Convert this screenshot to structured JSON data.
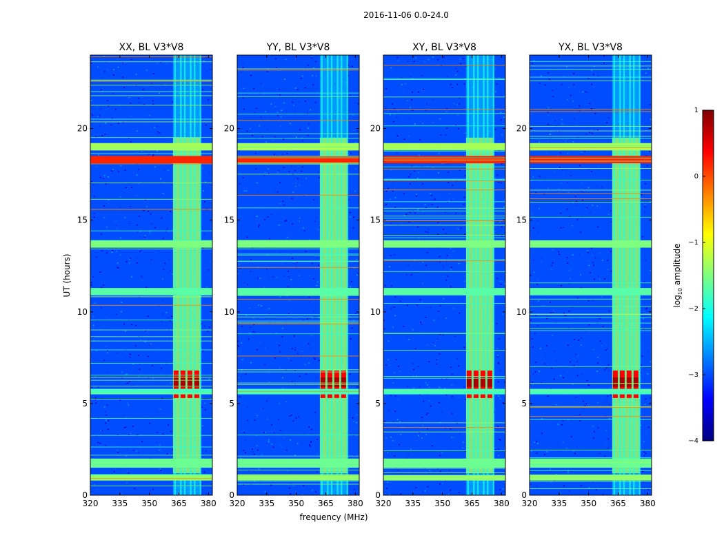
{
  "figure": {
    "title": "2016-11-06 0.0-24.0"
  },
  "chart_data": {
    "type": "heatmap",
    "xlabel": "frequency (MHz)",
    "ylabel": "UT (hours)",
    "xlim": [
      320,
      382
    ],
    "ylim": [
      0,
      24
    ],
    "xticks": [
      "320",
      "335",
      "350",
      "365",
      "380"
    ],
    "xtick_values": [
      320,
      335,
      350,
      365,
      380
    ],
    "yticks": [
      "0",
      "5",
      "10",
      "15",
      "20"
    ],
    "ytick_values": [
      0,
      5,
      10,
      15,
      20
    ],
    "panels": [
      {
        "title": "XX, BL V3*V8"
      },
      {
        "title": "YY, BL V3*V8"
      },
      {
        "title": "XY, BL V3*V8"
      },
      {
        "title": "YX, BL V3*V8"
      }
    ],
    "colorbar": {
      "label": "log10 amplitude",
      "label_main": "log",
      "label_sub": "10",
      "label_rest": " amplitude",
      "range": [
        -4,
        1
      ],
      "ticks": [
        "1",
        "0",
        "−1",
        "−2",
        "−3",
        "−4"
      ],
      "tick_values": [
        1,
        0,
        -1,
        -2,
        -3,
        -4
      ],
      "colormap": "jet",
      "colors": [
        "#00007f",
        "#0000ff",
        "#007fff",
        "#00ffff",
        "#7fff7f",
        "#ffff00",
        "#ff7f00",
        "#ff0000",
        "#7f0000"
      ]
    },
    "features": {
      "background_level": -3.0,
      "rfi_band_mhz": [
        362,
        376
      ],
      "strong_rfi_hours": [
        5.3,
        6.8
      ],
      "bright_hour_bands": [
        {
          "hours": [
            0.8,
            1.1
          ],
          "level": -1.4
        },
        {
          "hours": [
            1.5,
            2.0
          ],
          "level": -1.6
        },
        {
          "hours": [
            5.5,
            5.8
          ],
          "level": -1.8
        },
        {
          "hours": [
            10.9,
            11.3
          ],
          "level": -1.7
        },
        {
          "hours": [
            13.5,
            13.9
          ],
          "level": -1.5
        },
        {
          "hours": [
            18.1,
            18.5
          ],
          "level": 0.2
        },
        {
          "hours": [
            18.8,
            19.2
          ],
          "level": -1.3
        }
      ],
      "channel_stripes_mhz": [
        363,
        366,
        368,
        371,
        373,
        376
      ]
    }
  }
}
